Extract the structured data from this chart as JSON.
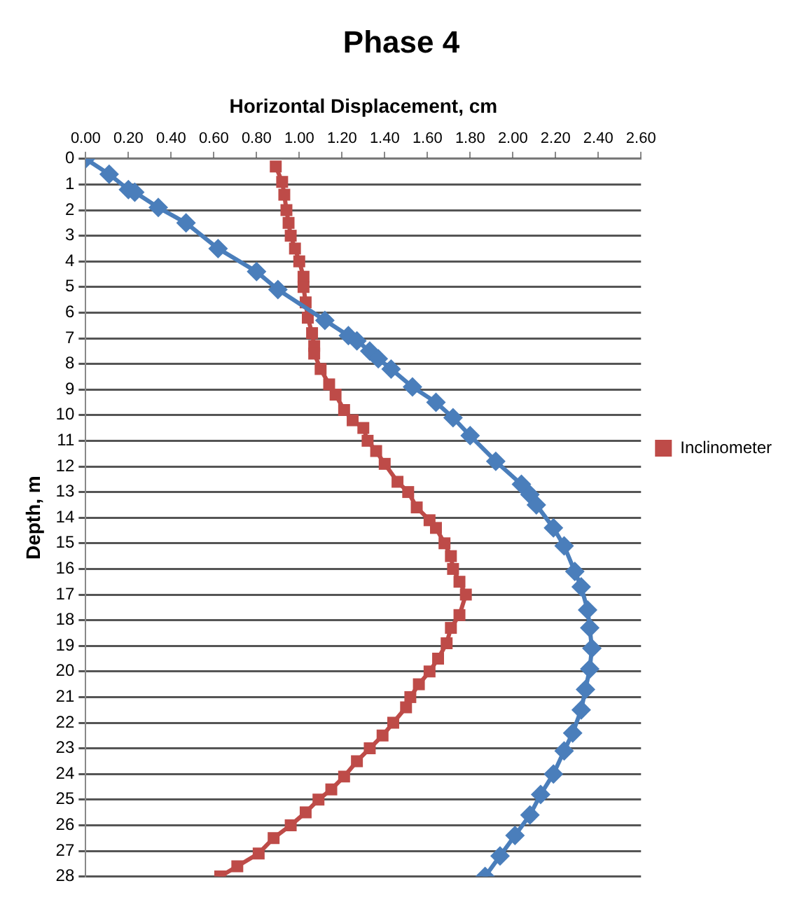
{
  "chart_data": {
    "type": "line",
    "title": "Phase 4",
    "xlabel": "Horizontal Displacement, cm",
    "ylabel": "Depth, m",
    "xlim": [
      0,
      2.6
    ],
    "xticks": [
      {
        "value": 0,
        "label": "0.00"
      },
      {
        "value": 0.2,
        "label": "0.20"
      },
      {
        "value": 0.4,
        "label": "0.40"
      },
      {
        "value": 0.6,
        "label": "0.60"
      },
      {
        "value": 0.8,
        "label": "0.80"
      },
      {
        "value": 1,
        "label": "1.00"
      },
      {
        "value": 1.2,
        "label": "1.20"
      },
      {
        "value": 1.4,
        "label": "1.40"
      },
      {
        "value": 1.6,
        "label": "1.60"
      },
      {
        "value": 1.8,
        "label": "1.80"
      },
      {
        "value": 2,
        "label": "2.00"
      },
      {
        "value": 2.2,
        "label": "2.20"
      },
      {
        "value": 2.4,
        "label": "2.40"
      },
      {
        "value": 2.6,
        "label": "2.60"
      }
    ],
    "ylim": [
      28,
      0
    ],
    "yticks": [
      0,
      1,
      2,
      3,
      4,
      5,
      6,
      7,
      8,
      9,
      10,
      11,
      12,
      13,
      14,
      15,
      16,
      17,
      18,
      19,
      20,
      21,
      22,
      23,
      24,
      25,
      26,
      27,
      28
    ],
    "grid": "y",
    "legend": "right",
    "line_style": "solid",
    "series": [
      {
        "color": "#4a7ebb",
        "marker": "diamond",
        "x": [
          0,
          0.11,
          0.2,
          0.23,
          0.34,
          0.47,
          0.62,
          0.8,
          0.9,
          1.12,
          1.23,
          1.27,
          1.33,
          1.37,
          1.43,
          1.53,
          1.64,
          1.72,
          1.8,
          1.92,
          2.04,
          2.08,
          2.11,
          2.19,
          2.24,
          2.29,
          2.32,
          2.35,
          2.36,
          2.37,
          2.36,
          2.34,
          2.32,
          2.28,
          2.24,
          2.19,
          2.13,
          2.08,
          2.01,
          1.94,
          1.87
        ],
        "values": [
          0,
          0.6,
          1.2,
          1.3,
          1.9,
          2.5,
          3.5,
          4.4,
          5.1,
          6.3,
          6.9,
          7.1,
          7.5,
          7.8,
          8.2,
          8.9,
          9.5,
          10.1,
          10.8,
          11.8,
          12.7,
          13.1,
          13.5,
          14.4,
          15.1,
          16.1,
          16.7,
          17.6,
          18.3,
          19.1,
          19.9,
          20.7,
          21.5,
          22.4,
          23.1,
          24,
          24.8,
          25.6,
          26.4,
          27.2,
          28
        ]
      },
      {
        "name": "Inclinometer",
        "color": "#be4b48",
        "marker": "square",
        "x": [
          0.89,
          0.92,
          0.93,
          0.94,
          0.95,
          0.96,
          0.98,
          1,
          1.02,
          1.02,
          1.03,
          1.04,
          1.06,
          1.07,
          1.07,
          1.1,
          1.14,
          1.17,
          1.21,
          1.25,
          1.3,
          1.32,
          1.36,
          1.4,
          1.46,
          1.51,
          1.55,
          1.61,
          1.64,
          1.68,
          1.71,
          1.72,
          1.75,
          1.78,
          1.75,
          1.71,
          1.69,
          1.65,
          1.61,
          1.56,
          1.52,
          1.5,
          1.44,
          1.39,
          1.33,
          1.27,
          1.21,
          1.15,
          1.09,
          1.03,
          0.96,
          0.88,
          0.81,
          0.71,
          0.63
        ],
        "values": [
          0.3,
          0.9,
          1.4,
          2,
          2.5,
          3,
          3.5,
          4,
          4.6,
          5,
          5.6,
          6.2,
          6.8,
          7.3,
          7.6,
          8.2,
          8.8,
          9.2,
          9.8,
          10.2,
          10.5,
          11,
          11.4,
          11.9,
          12.6,
          13,
          13.6,
          14.1,
          14.4,
          15,
          15.5,
          16,
          16.5,
          17,
          17.8,
          18.3,
          18.9,
          19.5,
          20,
          20.5,
          21,
          21.4,
          22,
          22.5,
          23,
          23.5,
          24.1,
          24.6,
          25,
          25.5,
          26,
          26.5,
          27.1,
          27.6,
          28
        ]
      }
    ]
  }
}
